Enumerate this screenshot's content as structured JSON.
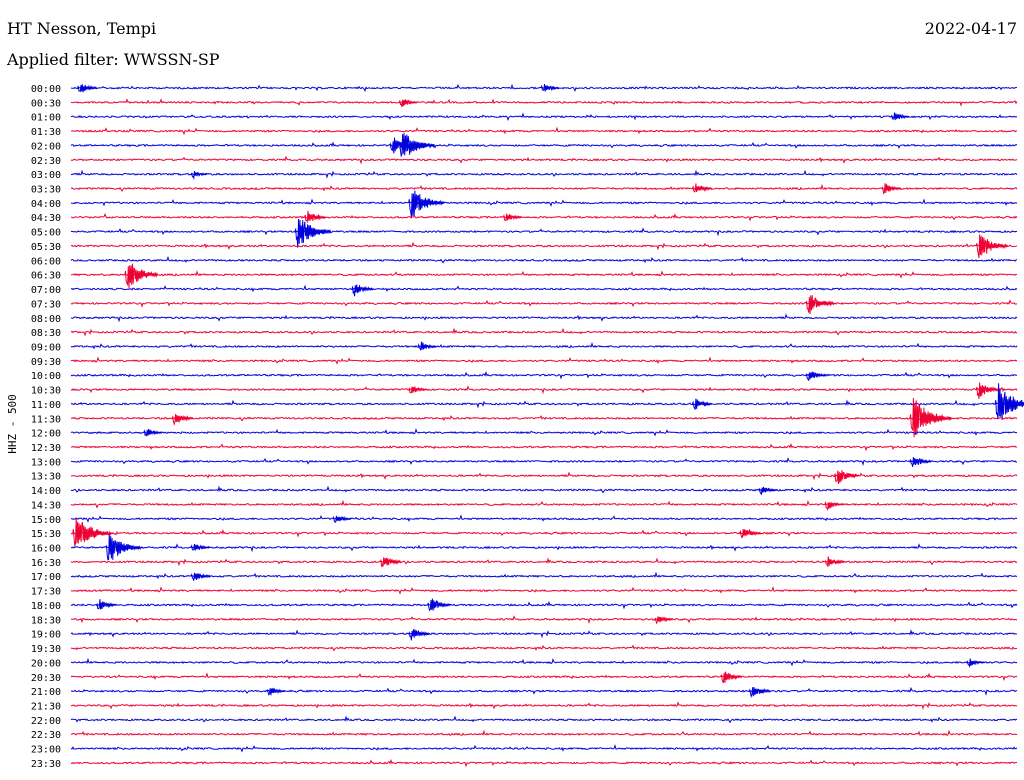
{
  "header": {
    "station": "HT Nesson, Tempi",
    "date": "2022-04-17",
    "filter": "Applied filter: WWSSN-SP"
  },
  "chart_data": {
    "type": "helicorder",
    "ylabel": "HHZ - 500",
    "colors": [
      "#0000dd",
      "#ee0033"
    ],
    "rows": [
      {
        "time": "00:00",
        "events": [
          [
            0.01,
            0.35
          ],
          [
            0.5,
            0.3
          ]
        ]
      },
      {
        "time": "00:30",
        "events": [
          [
            0.35,
            0.3
          ]
        ]
      },
      {
        "time": "01:00",
        "events": [
          [
            0.87,
            0.3
          ]
        ]
      },
      {
        "time": "01:30",
        "events": []
      },
      {
        "time": "02:00",
        "events": [
          [
            0.35,
            0.8
          ],
          [
            0.34,
            0.5
          ]
        ]
      },
      {
        "time": "02:30",
        "events": []
      },
      {
        "time": "03:00",
        "events": [
          [
            0.13,
            0.25
          ]
        ]
      },
      {
        "time": "03:30",
        "events": [
          [
            0.66,
            0.35
          ],
          [
            0.86,
            0.35
          ]
        ]
      },
      {
        "time": "04:00",
        "events": [
          [
            0.36,
            0.8
          ]
        ]
      },
      {
        "time": "04:30",
        "events": [
          [
            0.25,
            0.4
          ],
          [
            0.46,
            0.3
          ]
        ]
      },
      {
        "time": "05:00",
        "events": [
          [
            0.24,
            0.85
          ]
        ]
      },
      {
        "time": "05:30",
        "events": [
          [
            0.96,
            0.7
          ]
        ]
      },
      {
        "time": "06:00",
        "events": []
      },
      {
        "time": "06:30",
        "events": [
          [
            0.06,
            0.75
          ]
        ]
      },
      {
        "time": "07:00",
        "events": [
          [
            0.3,
            0.4
          ]
        ]
      },
      {
        "time": "07:30",
        "events": [
          [
            0.78,
            0.6
          ]
        ]
      },
      {
        "time": "08:00",
        "events": []
      },
      {
        "time": "08:30",
        "events": []
      },
      {
        "time": "09:00",
        "events": [
          [
            0.37,
            0.3
          ]
        ]
      },
      {
        "time": "09:30",
        "events": []
      },
      {
        "time": "10:00",
        "events": [
          [
            0.78,
            0.35
          ]
        ]
      },
      {
        "time": "10:30",
        "events": [
          [
            0.36,
            0.3
          ],
          [
            0.96,
            0.5
          ]
        ]
      },
      {
        "time": "11:00",
        "events": [
          [
            0.98,
            0.95
          ],
          [
            0.66,
            0.35
          ]
        ]
      },
      {
        "time": "11:30",
        "events": [
          [
            0.89,
            1.0
          ],
          [
            0.11,
            0.4
          ]
        ]
      },
      {
        "time": "12:00",
        "events": [
          [
            0.08,
            0.3
          ]
        ]
      },
      {
        "time": "12:30",
        "events": []
      },
      {
        "time": "13:00",
        "events": [
          [
            0.89,
            0.4
          ]
        ]
      },
      {
        "time": "13:30",
        "events": [
          [
            0.81,
            0.5
          ]
        ]
      },
      {
        "time": "14:00",
        "events": [
          [
            0.73,
            0.3
          ]
        ]
      },
      {
        "time": "14:30",
        "events": [
          [
            0.8,
            0.3
          ]
        ]
      },
      {
        "time": "15:00",
        "events": [
          [
            0.28,
            0.3
          ]
        ]
      },
      {
        "time": "15:30",
        "events": [
          [
            0.005,
            0.9
          ],
          [
            0.71,
            0.4
          ]
        ]
      },
      {
        "time": "16:00",
        "events": [
          [
            0.04,
            0.8
          ],
          [
            0.13,
            0.3
          ]
        ]
      },
      {
        "time": "16:30",
        "events": [
          [
            0.33,
            0.4
          ],
          [
            0.8,
            0.35
          ]
        ]
      },
      {
        "time": "17:00",
        "events": [
          [
            0.13,
            0.35
          ]
        ]
      },
      {
        "time": "17:30",
        "events": []
      },
      {
        "time": "18:00",
        "events": [
          [
            0.03,
            0.35
          ],
          [
            0.38,
            0.45
          ]
        ]
      },
      {
        "time": "18:30",
        "events": [
          [
            0.62,
            0.3
          ]
        ]
      },
      {
        "time": "19:00",
        "events": [
          [
            0.36,
            0.4
          ]
        ]
      },
      {
        "time": "19:30",
        "events": []
      },
      {
        "time": "20:00",
        "events": [
          [
            0.95,
            0.3
          ]
        ]
      },
      {
        "time": "20:30",
        "events": [
          [
            0.69,
            0.4
          ]
        ]
      },
      {
        "time": "21:00",
        "events": [
          [
            0.21,
            0.3
          ],
          [
            0.72,
            0.4
          ]
        ]
      },
      {
        "time": "21:30",
        "events": []
      },
      {
        "time": "22:00",
        "events": []
      },
      {
        "time": "22:30",
        "events": []
      },
      {
        "time": "23:00",
        "events": []
      },
      {
        "time": "23:30",
        "events": []
      }
    ]
  }
}
